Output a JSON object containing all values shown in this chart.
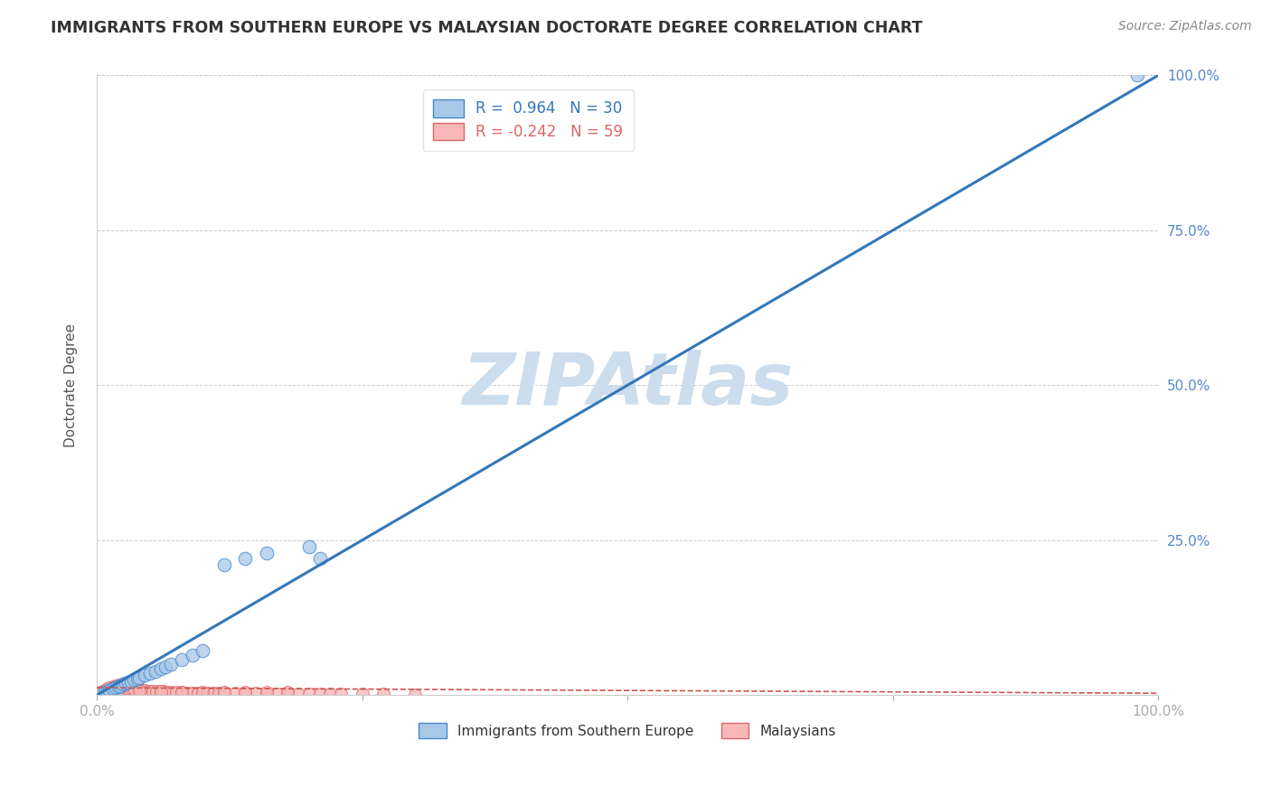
{
  "title": "IMMIGRANTS FROM SOUTHERN EUROPE VS MALAYSIAN DOCTORATE DEGREE CORRELATION CHART",
  "source": "Source: ZipAtlas.com",
  "ylabel": "Doctorate Degree",
  "xlim": [
    0,
    1
  ],
  "ylim": [
    0,
    1
  ],
  "xticks": [
    0.0,
    0.25,
    0.5,
    0.75,
    1.0
  ],
  "yticks": [
    0.0,
    0.25,
    0.5,
    0.75,
    1.0
  ],
  "xtick_labels": [
    "0.0%",
    "",
    "",
    "",
    "100.0%"
  ],
  "ytick_labels_right": [
    "",
    "25.0%",
    "50.0%",
    "75.0%",
    "100.0%"
  ],
  "blue_color": "#a8c8e8",
  "blue_edge_color": "#4488cc",
  "blue_line_color": "#3377bb",
  "pink_color": "#f8b8b8",
  "pink_edge_color": "#dd6666",
  "pink_line_color": "#cc5555",
  "blue_R": 0.964,
  "blue_N": 30,
  "pink_R": -0.242,
  "pink_N": 59,
  "watermark": "ZIPAtlas",
  "watermark_color": "#ccdded",
  "background_color": "#ffffff",
  "grid_color": "#cccccc",
  "title_fontsize": 12.5,
  "source_fontsize": 10,
  "legend_label_blue": "Immigrants from Southern Europe",
  "legend_label_pink": "Malaysians",
  "tick_label_color": "#5588cc",
  "blue_scatter_x": [
    0.005,
    0.008,
    0.01,
    0.012,
    0.015,
    0.018,
    0.02,
    0.022,
    0.025,
    0.027,
    0.03,
    0.032,
    0.035,
    0.038,
    0.04,
    0.045,
    0.05,
    0.055,
    0.06,
    0.065,
    0.07,
    0.08,
    0.09,
    0.1,
    0.12,
    0.14,
    0.16,
    0.2,
    0.21,
    0.98
  ],
  "blue_scatter_y": [
    0.003,
    0.005,
    0.007,
    0.008,
    0.01,
    0.012,
    0.014,
    0.015,
    0.018,
    0.019,
    0.021,
    0.022,
    0.025,
    0.027,
    0.028,
    0.032,
    0.035,
    0.038,
    0.042,
    0.045,
    0.05,
    0.057,
    0.065,
    0.072,
    0.21,
    0.22,
    0.23,
    0.24,
    0.22,
    1.0
  ],
  "pink_scatter_x": [
    0.003,
    0.006,
    0.008,
    0.01,
    0.012,
    0.015,
    0.018,
    0.02,
    0.022,
    0.025,
    0.028,
    0.03,
    0.033,
    0.036,
    0.04,
    0.042,
    0.045,
    0.048,
    0.05,
    0.053,
    0.056,
    0.06,
    0.063,
    0.066,
    0.07,
    0.075,
    0.08,
    0.085,
    0.09,
    0.095,
    0.1,
    0.105,
    0.11,
    0.115,
    0.12,
    0.13,
    0.14,
    0.15,
    0.16,
    0.17,
    0.18,
    0.19,
    0.2,
    0.21,
    0.22,
    0.23,
    0.25,
    0.27,
    0.3,
    0.14,
    0.16,
    0.18,
    0.12,
    0.1,
    0.08,
    0.06,
    0.04,
    0.02,
    0.015
  ],
  "pink_scatter_y": [
    0.005,
    0.007,
    0.008,
    0.01,
    0.012,
    0.014,
    0.015,
    0.016,
    0.014,
    0.013,
    0.012,
    0.011,
    0.01,
    0.009,
    0.009,
    0.008,
    0.008,
    0.007,
    0.007,
    0.007,
    0.006,
    0.006,
    0.006,
    0.005,
    0.005,
    0.005,
    0.005,
    0.004,
    0.004,
    0.004,
    0.004,
    0.004,
    0.003,
    0.003,
    0.003,
    0.003,
    0.003,
    0.003,
    0.002,
    0.002,
    0.002,
    0.002,
    0.002,
    0.002,
    0.002,
    0.002,
    0.002,
    0.002,
    0.001,
    0.005,
    0.005,
    0.005,
    0.005,
    0.005,
    0.005,
    0.006,
    0.007,
    0.009,
    0.01
  ],
  "blue_line_x": [
    0.0,
    1.0
  ],
  "blue_line_y": [
    0.0,
    1.0
  ],
  "pink_line_x": [
    0.0,
    1.0
  ],
  "pink_line_y": [
    0.012,
    0.003
  ]
}
